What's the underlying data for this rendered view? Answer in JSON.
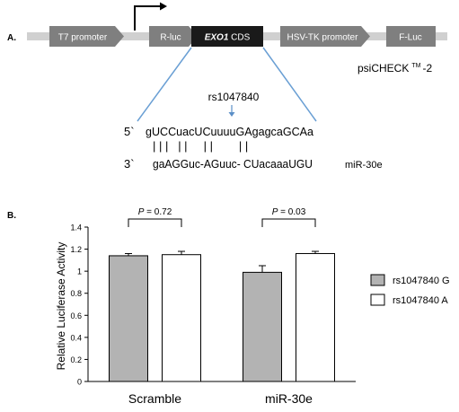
{
  "panel_a": {
    "label": "A.",
    "construct": {
      "segments": [
        "T7 promoter",
        "R-luc",
        "HSV-TK promoter",
        "F-Luc"
      ],
      "cds_gene": "EXO1",
      "cds_suffix": " CDS",
      "plasmid_name": "psiCHECK",
      "plasmid_tm": "TM",
      "plasmid_suffix": "-2"
    },
    "snp_label": "rs1047840",
    "mrna_prime": "5`",
    "mrna_seq": "gUCCuacUCuuuuGAgagcaGCAa",
    "pairing": "| | |   | |     | |        | |",
    "mirna_prime": "3`",
    "mirna_seq": "gaAGGuc-AGuuc- CUacaaaUGU",
    "mirna_name": "miR-30e",
    "colors": {
      "segment": "#7f7f7f",
      "cds": "#1a1a1a",
      "backbone": "#d0d0d0",
      "guide": "#6a9fd4",
      "snp_arrow": "#5b8fc7"
    }
  },
  "panel_b": {
    "label": "B.",
    "chart_data": {
      "type": "bar",
      "categories": [
        "Scramble",
        "miR-30e"
      ],
      "series": [
        {
          "name": "rs1047840 G",
          "values": [
            1.14,
            0.99
          ],
          "errors": [
            0.02,
            0.06
          ],
          "color": "#b3b3b3"
        },
        {
          "name": "rs1047840 A",
          "values": [
            1.15,
            1.16
          ],
          "errors": [
            0.03,
            0.02
          ],
          "color": "#ffffff"
        }
      ],
      "ylabel": "Relative Luciferase Activity",
      "ylim": [
        0,
        1.4
      ],
      "yticks": [
        0,
        0.2,
        0.4,
        0.6,
        0.8,
        1,
        1.2,
        1.4
      ],
      "yticklabels": [
        "0",
        "0.2",
        "0.4",
        "0.6",
        "0.8",
        "1",
        "1.2",
        "1.4"
      ],
      "legend_position": "right",
      "annotations": [
        {
          "category": "Scramble",
          "p_label": "P",
          "p_value": " = 0.72"
        },
        {
          "category": "miR-30e",
          "p_label": "P",
          "p_value": " = 0.03"
        }
      ]
    }
  }
}
